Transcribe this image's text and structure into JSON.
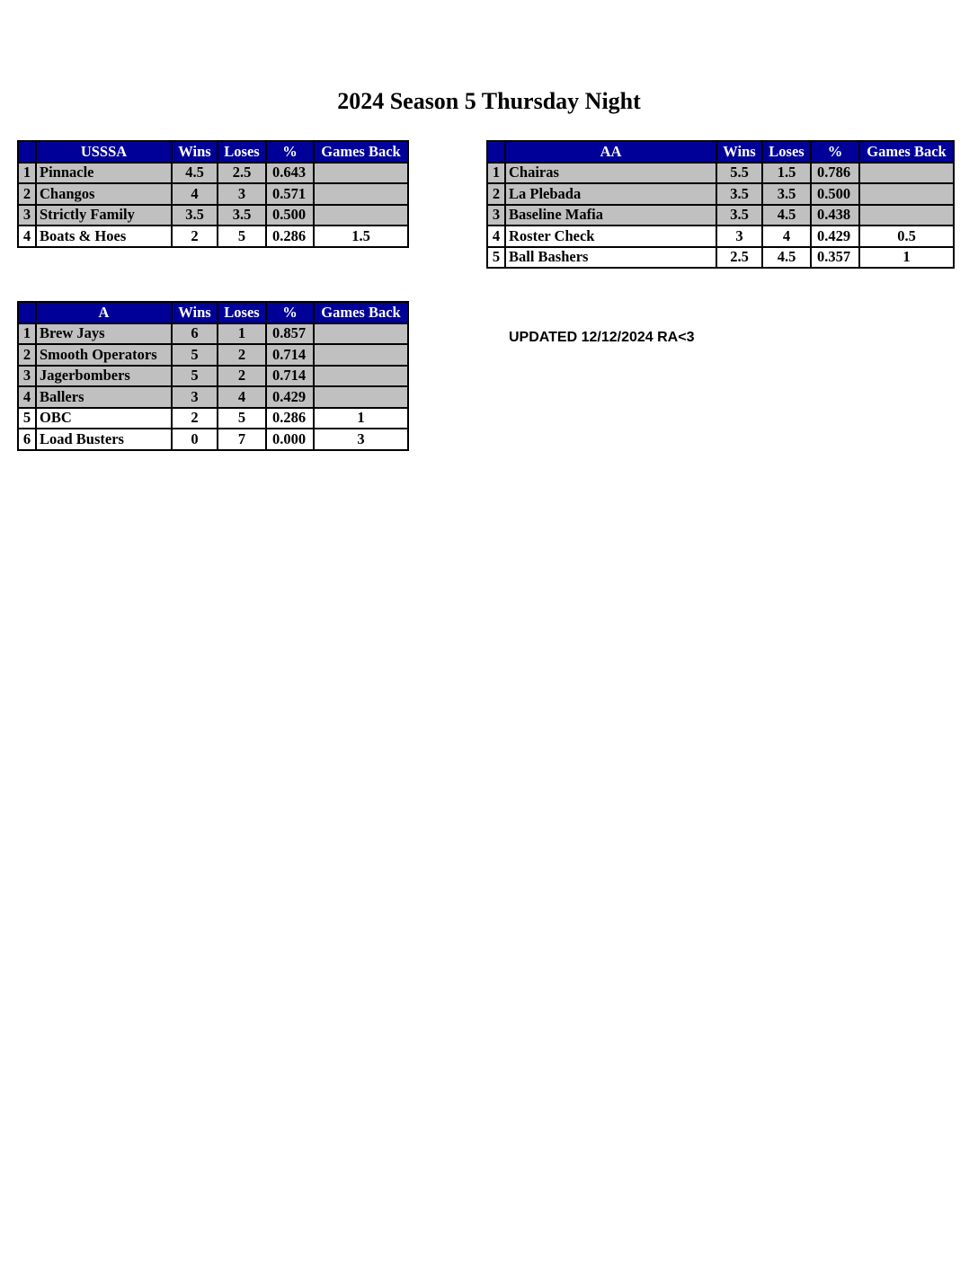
{
  "title": "2024 Season 5 Thursday Night",
  "updated": "UPDATED 12/12/2024 RA<3",
  "columns": [
    "Wins",
    "Loses",
    "%",
    "Games Back"
  ],
  "colors": {
    "header": "#000099",
    "highlight": "#c0c0c0"
  },
  "tables": [
    {
      "division": "USSSA",
      "rows": [
        {
          "rank": "1",
          "team": "Pinnacle",
          "wins": "4.5",
          "loses": "2.5",
          "pct": "0.643",
          "gb": "",
          "highlight": true
        },
        {
          "rank": "2",
          "team": "Changos",
          "wins": "4",
          "loses": "3",
          "pct": "0.571",
          "gb": "",
          "highlight": true
        },
        {
          "rank": "3",
          "team": "Strictly Family",
          "wins": "3.5",
          "loses": "3.5",
          "pct": "0.500",
          "gb": "",
          "highlight": true
        },
        {
          "rank": "4",
          "team": "Boats & Hoes",
          "wins": "2",
          "loses": "5",
          "pct": "0.286",
          "gb": "1.5",
          "highlight": false
        }
      ]
    },
    {
      "division": "AA",
      "rows": [
        {
          "rank": "1",
          "team": "Chairas",
          "wins": "5.5",
          "loses": "1.5",
          "pct": "0.786",
          "gb": "",
          "highlight": true
        },
        {
          "rank": "2",
          "team": "La Plebada",
          "wins": "3.5",
          "loses": "3.5",
          "pct": "0.500",
          "gb": "",
          "highlight": true
        },
        {
          "rank": "3",
          "team": "Baseline Mafia",
          "wins": "3.5",
          "loses": "4.5",
          "pct": "0.438",
          "gb": "",
          "highlight": true
        },
        {
          "rank": "4",
          "team": "Roster Check",
          "wins": "3",
          "loses": "4",
          "pct": "0.429",
          "gb": "0.5",
          "highlight": false
        },
        {
          "rank": "5",
          "team": "Ball Bashers",
          "wins": "2.5",
          "loses": "4.5",
          "pct": "0.357",
          "gb": "1",
          "highlight": false
        }
      ]
    },
    {
      "division": "A",
      "rows": [
        {
          "rank": "1",
          "team": "Brew Jays",
          "wins": "6",
          "loses": "1",
          "pct": "0.857",
          "gb": "",
          "highlight": true
        },
        {
          "rank": "2",
          "team": "Smooth Operators",
          "wins": "5",
          "loses": "2",
          "pct": "0.714",
          "gb": "",
          "highlight": true
        },
        {
          "rank": "3",
          "team": "Jagerbombers",
          "wins": "5",
          "loses": "2",
          "pct": "0.714",
          "gb": "",
          "highlight": true
        },
        {
          "rank": "4",
          "team": "Ballers",
          "wins": "3",
          "loses": "4",
          "pct": "0.429",
          "gb": "",
          "highlight": true
        },
        {
          "rank": "5",
          "team": "OBC",
          "wins": "2",
          "loses": "5",
          "pct": "0.286",
          "gb": "1",
          "highlight": false
        },
        {
          "rank": "6",
          "team": "Load Busters",
          "wins": "0",
          "loses": "7",
          "pct": "0.000",
          "gb": "3",
          "highlight": false
        }
      ]
    }
  ]
}
